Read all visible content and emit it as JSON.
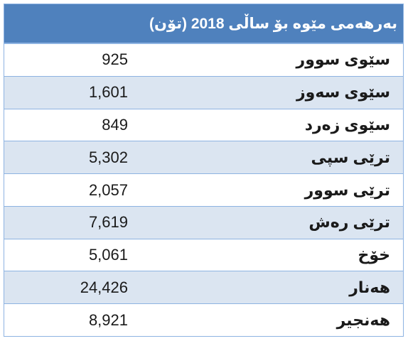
{
  "table": {
    "title": "بەرهەمی مێوە  بۆ ساڵی 2018 (تۆن)",
    "rows": [
      {
        "name": "سێوی سوور",
        "value": "925"
      },
      {
        "name": "سێوی سەوز",
        "value": "1,601"
      },
      {
        "name": "سێوی زەرد",
        "value": "849"
      },
      {
        "name": "ترێی سپی",
        "value": "5,302"
      },
      {
        "name": "ترێی سوور",
        "value": "2,057"
      },
      {
        "name": "ترێی رەش",
        "value": "7,619"
      },
      {
        "name": "خۆخ",
        "value": "5,061"
      },
      {
        "name": "هەنار",
        "value": "24,426"
      },
      {
        "name": "هەنجیر",
        "value": "8,921"
      }
    ]
  },
  "colors": {
    "header_bg": "#4f81bd",
    "alt_row_bg": "#dbe5f1",
    "border": "#8db3e2"
  }
}
